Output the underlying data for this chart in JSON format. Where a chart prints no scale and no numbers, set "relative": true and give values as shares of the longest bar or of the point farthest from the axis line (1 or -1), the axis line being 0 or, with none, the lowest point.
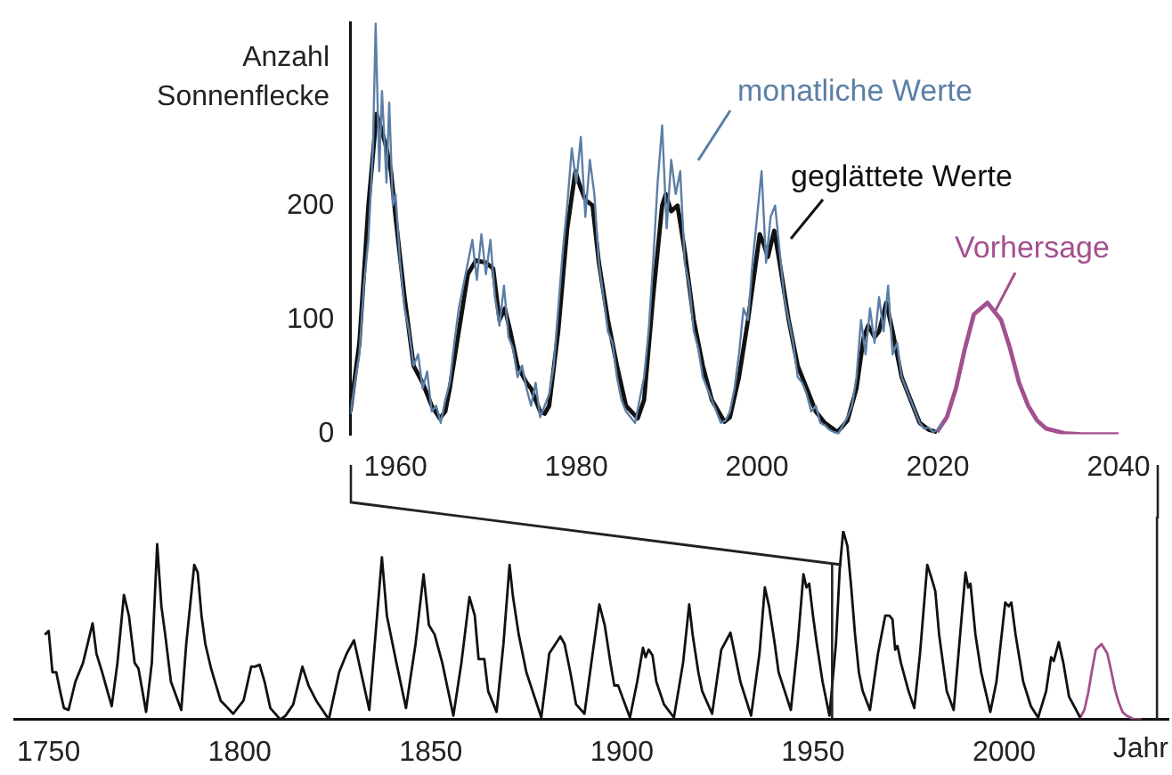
{
  "chart_data": [
    {
      "type": "line",
      "ylabel": "Anzahl Sonnenflecke",
      "xlim": [
        1955,
        2040
      ],
      "xticks": [
        1960,
        1980,
        2000,
        2020,
        2040
      ],
      "ylim": [
        0,
        360
      ],
      "yticks": [
        0,
        100,
        200
      ],
      "grid": false,
      "legend": false,
      "marker": "none",
      "line_style": "solid",
      "series": [
        {
          "name": "monatliche Werte",
          "color": "#5b7fa6",
          "x": [
            1955.0,
            1955.5,
            1956.0,
            1956.5,
            1957.0,
            1957.5,
            1957.8,
            1958.2,
            1958.5,
            1959.0,
            1959.3,
            1959.7,
            1960.0,
            1960.5,
            1961.0,
            1961.5,
            1962.0,
            1962.5,
            1963.0,
            1963.5,
            1964.0,
            1964.5,
            1965.0,
            1965.5,
            1966.0,
            1966.5,
            1967.0,
            1967.5,
            1968.0,
            1968.5,
            1969.0,
            1969.5,
            1970.0,
            1970.5,
            1971.0,
            1971.5,
            1972.0,
            1972.5,
            1973.0,
            1973.5,
            1974.0,
            1974.5,
            1975.0,
            1975.5,
            1976.0,
            1976.5,
            1977.0,
            1977.5,
            1978.0,
            1978.5,
            1979.0,
            1979.5,
            1980.0,
            1980.5,
            1981.0,
            1981.5,
            1982.0,
            1982.5,
            1983.0,
            1983.5,
            1984.0,
            1984.5,
            1985.0,
            1985.5,
            1986.0,
            1986.5,
            1987.0,
            1987.5,
            1988.0,
            1988.5,
            1989.0,
            1989.5,
            1990.0,
            1990.5,
            1991.0,
            1991.5,
            1992.0,
            1992.5,
            1993.0,
            1993.5,
            1994.0,
            1994.5,
            1995.0,
            1995.5,
            1996.0,
            1996.5,
            1997.0,
            1997.5,
            1998.0,
            1998.5,
            1999.0,
            1999.5,
            2000.0,
            2000.5,
            2001.0,
            2001.5,
            2002.0,
            2002.5,
            2003.0,
            2003.5,
            2004.0,
            2004.5,
            2005.0,
            2005.5,
            2006.0,
            2006.5,
            2007.0,
            2007.5,
            2008.0,
            2008.5,
            2009.0,
            2009.5,
            2010.0,
            2010.5,
            2011.0,
            2011.5,
            2012.0,
            2012.5,
            2013.0,
            2013.5,
            2014.0,
            2014.5,
            2015.0,
            2015.5,
            2016.0,
            2016.5,
            2017.0,
            2017.5,
            2018.0,
            2018.5,
            2019.0,
            2019.5,
            2020.0,
            2020.5
          ],
          "values": [
            18,
            45,
            70,
            130,
            170,
            250,
            359,
            230,
            300,
            220,
            290,
            200,
            210,
            150,
            110,
            90,
            60,
            70,
            40,
            55,
            20,
            25,
            10,
            30,
            45,
            80,
            110,
            130,
            150,
            170,
            135,
            175,
            140,
            170,
            120,
            95,
            130,
            85,
            75,
            50,
            60,
            40,
            25,
            45,
            15,
            25,
            35,
            60,
            110,
            160,
            200,
            250,
            220,
            260,
            190,
            240,
            210,
            150,
            120,
            90,
            80,
            50,
            30,
            20,
            15,
            10,
            30,
            50,
            90,
            150,
            220,
            270,
            180,
            240,
            210,
            230,
            150,
            130,
            90,
            75,
            50,
            40,
            30,
            20,
            10,
            12,
            20,
            40,
            70,
            110,
            100,
            150,
            190,
            230,
            150,
            190,
            200,
            160,
            120,
            100,
            80,
            50,
            45,
            35,
            20,
            25,
            10,
            8,
            4,
            2,
            1,
            8,
            15,
            25,
            50,
            100,
            70,
            110,
            80,
            120,
            90,
            130,
            70,
            80,
            50,
            40,
            30,
            20,
            10,
            5,
            6,
            2,
            4,
            10
          ]
        },
        {
          "name": "geglättete Werte",
          "color": "#111111",
          "x": [
            1955,
            1956,
            1957,
            1957.9,
            1958.5,
            1959,
            1959.5,
            1960,
            1961,
            1962,
            1963,
            1964,
            1964.9,
            1965.5,
            1966,
            1967,
            1968,
            1968.9,
            1970,
            1970.8,
            1971.5,
            1972.1,
            1972.7,
            1973.5,
            1974.5,
            1975,
            1976,
            1976.5,
            1977,
            1978,
            1979,
            1979.9,
            1980.5,
            1981,
            1981.8,
            1982.5,
            1983.5,
            1984.5,
            1985.5,
            1986.8,
            1987.5,
            1988.5,
            1989.5,
            1989.9,
            1990.5,
            1991.2,
            1992,
            1993,
            1994,
            1995,
            1996.4,
            1997,
            1998,
            1999,
            2000.3,
            2000.8,
            2001.2,
            2001.9,
            2002.5,
            2003.5,
            2004.5,
            2005.5,
            2006.5,
            2007.5,
            2008.9,
            2010,
            2011,
            2011.8,
            2012.3,
            2013,
            2013.5,
            2014.3,
            2015,
            2016,
            2017,
            2018,
            2019,
            2019.9
          ],
          "values": [
            20,
            80,
            200,
            280,
            265,
            250,
            230,
            190,
            120,
            60,
            45,
            25,
            14,
            20,
            40,
            90,
            140,
            152,
            150,
            145,
            100,
            110,
            90,
            60,
            45,
            40,
            20,
            18,
            25,
            90,
            180,
            230,
            215,
            205,
            200,
            150,
            100,
            60,
            25,
            14,
            30,
            120,
            200,
            210,
            195,
            200,
            160,
            100,
            60,
            30,
            11,
            15,
            50,
            100,
            175,
            165,
            155,
            178,
            150,
            100,
            60,
            40,
            20,
            10,
            2,
            12,
            40,
            85,
            95,
            85,
            90,
            115,
            90,
            50,
            30,
            10,
            4,
            2
          ]
        },
        {
          "name": "Vorhersage",
          "color": "#a4508f",
          "x": [
            2019.9,
            2021,
            2022,
            2023,
            2024,
            2025.5,
            2027,
            2028,
            2029,
            2030,
            2031,
            2032,
            2034,
            2036,
            2040
          ],
          "values": [
            2,
            15,
            40,
            75,
            105,
            115,
            100,
            75,
            45,
            25,
            12,
            5,
            1,
            0,
            0
          ]
        }
      ]
    },
    {
      "type": "line",
      "relative": true,
      "xlabel": "Jahr",
      "ref_lines": [
        {
          "axis": "x",
          "value": 1955,
          "color": "#222222"
        },
        {
          "axis": "x",
          "value": 2040,
          "color": "#222222"
        }
      ],
      "xlim": [
        1741,
        2043
      ],
      "xticks": [
        1750,
        1800,
        1850,
        1900,
        1950,
        2000
      ],
      "tick_labels": "x",
      "grid": false,
      "legend": false,
      "marker": "none",
      "line_style": "solid",
      "series": [
        {
          "color": "#111111",
          "x": [
            1749,
            1750,
            1751,
            1752,
            1753,
            1754,
            1755.2,
            1757,
            1759,
            1761.5,
            1762.5,
            1764,
            1766.5,
            1768,
            1769.7,
            1771,
            1772.5,
            1773.5,
            1775.5,
            1777,
            1778.4,
            1779.5,
            1780.5,
            1782,
            1784.7,
            1786,
            1788.1,
            1789,
            1790,
            1791,
            1792.5,
            1795,
            1798.3,
            1801,
            1803,
            1804,
            1805.2,
            1806.5,
            1808,
            1810.6,
            1812,
            1814,
            1816.4,
            1818,
            1820,
            1823.3,
            1826,
            1828,
            1829.9,
            1833.9,
            1837.2,
            1838.5,
            1840,
            1841,
            1843.5,
            1846,
            1848.1,
            1849.5,
            1851,
            1853,
            1855.9,
            1858,
            1860.1,
            1861.5,
            1862.5,
            1864,
            1865,
            1867.2,
            1869,
            1870.6,
            1871.5,
            1873,
            1875,
            1878.9,
            1881,
            1883.9,
            1885,
            1886.5,
            1888,
            1890.2,
            1892,
            1894.1,
            1895.5,
            1897,
            1898,
            1899,
            1902.1,
            1904,
            1905.5,
            1906.2,
            1907,
            1908,
            1909,
            1911,
            1913.6,
            1916,
            1917.6,
            1918.5,
            1920,
            1921,
            1923.6,
            1926,
            1928.4,
            1929.5,
            1931,
            1933.8,
            1936,
            1937.4,
            1938.5,
            1940,
            1941,
            1944.2,
            1946,
            1947.5,
            1948.3,
            1949,
            1950,
            1951,
            1952.5,
            1954.3,
            1956,
            1957,
            1957.9,
            1959,
            1960,
            1961,
            1962,
            1963,
            1964.9,
            1967,
            1968.9,
            1970,
            1970.8,
            1971.5,
            1972.1,
            1973,
            1975,
            1976.5,
            1978,
            1979.9,
            1981,
            1982,
            1983,
            1985,
            1986.8,
            1988.5,
            1989.9,
            1990.6,
            1991.2,
            1992.5,
            1994,
            1996.4,
            1998,
            2000.3,
            2001.2,
            2001.9,
            2003,
            2005,
            2007,
            2008.9,
            2011,
            2012.3,
            2013,
            2014.3,
            2015.5,
            2017,
            2019.9
          ],
          "values": [
            0.45,
            0.47,
            0.25,
            0.25,
            0.15,
            0.06,
            0.05,
            0.2,
            0.3,
            0.51,
            0.35,
            0.25,
            0.07,
            0.3,
            0.66,
            0.55,
            0.3,
            0.27,
            0.04,
            0.3,
            0.93,
            0.6,
            0.45,
            0.2,
            0.05,
            0.4,
            0.82,
            0.78,
            0.55,
            0.4,
            0.27,
            0.1,
            0.03,
            0.1,
            0.28,
            0.28,
            0.29,
            0.2,
            0.06,
            0.0,
            0.02,
            0.08,
            0.28,
            0.18,
            0.1,
            0.0,
            0.25,
            0.35,
            0.42,
            0.05,
            0.86,
            0.55,
            0.4,
            0.3,
            0.06,
            0.4,
            0.77,
            0.5,
            0.45,
            0.3,
            0.02,
            0.3,
            0.65,
            0.55,
            0.32,
            0.32,
            0.15,
            0.04,
            0.4,
            0.82,
            0.65,
            0.45,
            0.25,
            0.01,
            0.35,
            0.44,
            0.4,
            0.25,
            0.08,
            0.03,
            0.3,
            0.61,
            0.5,
            0.3,
            0.18,
            0.18,
            0.01,
            0.2,
            0.38,
            0.33,
            0.37,
            0.34,
            0.2,
            0.08,
            0.01,
            0.3,
            0.61,
            0.45,
            0.25,
            0.15,
            0.03,
            0.37,
            0.46,
            0.35,
            0.2,
            0.02,
            0.35,
            0.7,
            0.6,
            0.4,
            0.25,
            0.05,
            0.4,
            0.77,
            0.7,
            0.72,
            0.55,
            0.4,
            0.2,
            0.02,
            0.4,
            0.8,
            1.0,
            0.92,
            0.7,
            0.45,
            0.25,
            0.15,
            0.05,
            0.35,
            0.55,
            0.55,
            0.53,
            0.37,
            0.39,
            0.3,
            0.15,
            0.06,
            0.35,
            0.82,
            0.75,
            0.68,
            0.45,
            0.15,
            0.05,
            0.45,
            0.78,
            0.7,
            0.72,
            0.45,
            0.25,
            0.04,
            0.2,
            0.62,
            0.6,
            0.62,
            0.45,
            0.2,
            0.07,
            0.01,
            0.15,
            0.33,
            0.31,
            0.41,
            0.3,
            0.12,
            0.01
          ]
        },
        {
          "color": "#a4508f",
          "x": [
            2019.9,
            2021,
            2022,
            2023,
            2024,
            2025.5,
            2027,
            2028,
            2029,
            2030,
            2031,
            2032,
            2034,
            2036
          ],
          "values": [
            0.01,
            0.05,
            0.14,
            0.26,
            0.37,
            0.4,
            0.35,
            0.26,
            0.16,
            0.09,
            0.04,
            0.02,
            0,
            0
          ]
        }
      ]
    }
  ]
}
